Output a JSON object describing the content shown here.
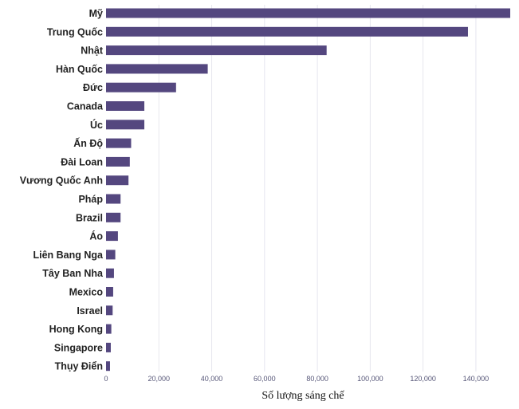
{
  "chart_data": {
    "type": "bar",
    "orientation": "horizontal",
    "categories": [
      "Mỹ",
      "Trung Quốc",
      "Nhật",
      "Hàn Quốc",
      "Đức",
      "Canada",
      "Úc",
      "Ấn Độ",
      "Đài Loan",
      "Vương Quốc Anh",
      "Pháp",
      "Brazil",
      "Áo",
      "Liên Bang Nga",
      "Tây Ban Nha",
      "Mexico",
      "Israel",
      "Hong Kong",
      "Singapore",
      "Thụy Điển"
    ],
    "values": [
      153000,
      137000,
      83500,
      38500,
      26500,
      14500,
      14500,
      9500,
      9000,
      8500,
      5500,
      5500,
      4500,
      3500,
      3000,
      2700,
      2500,
      2000,
      1800,
      1500
    ],
    "xticks": [
      0,
      20000,
      40000,
      60000,
      80000,
      100000,
      120000,
      140000
    ],
    "xtick_labels": [
      "0",
      "20,000",
      "40,000",
      "60,000",
      "80,000",
      "100,000",
      "120,000",
      "140,000"
    ],
    "xlim": [
      0,
      153000
    ],
    "xlabel": "Số lượng sáng chế",
    "ylabel": "",
    "title": "",
    "grid": true,
    "bar_color": "#54477f"
  }
}
